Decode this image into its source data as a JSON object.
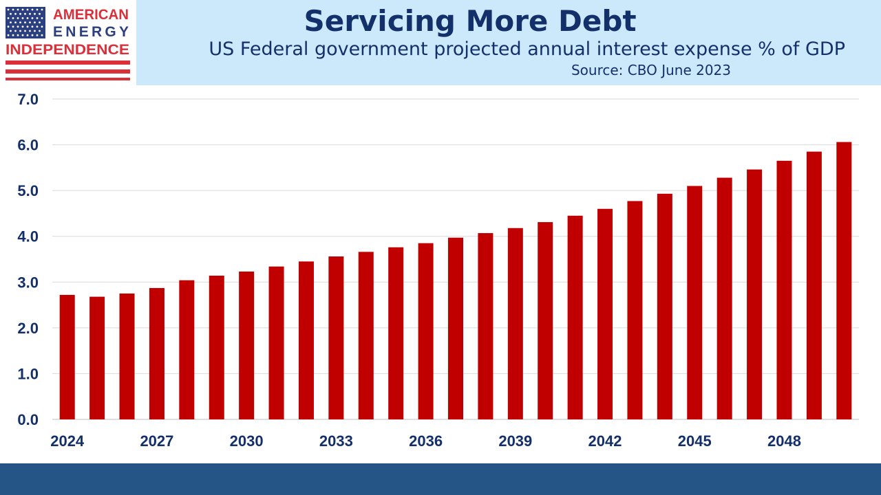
{
  "logo": {
    "line1": "AMERICAN",
    "line2": "ENERGY",
    "line3": "INDEPENDENCE",
    "colors": {
      "red": "#d9303a",
      "blue": "#2c3f7f"
    }
  },
  "chart_data": {
    "type": "bar",
    "title": "Servicing More Debt",
    "subtitle": "US Federal government projected annual interest expense % of GDP",
    "source": "Source: CBO June 2023",
    "xlabel": "",
    "ylabel": "",
    "categories": [
      "2024",
      "2025",
      "2026",
      "2027",
      "2028",
      "2029",
      "2030",
      "2031",
      "2032",
      "2033",
      "2034",
      "2035",
      "2036",
      "2037",
      "2038",
      "2039",
      "2040",
      "2041",
      "2042",
      "2043",
      "2044",
      "2045",
      "2046",
      "2047",
      "2048",
      "2049",
      "2050"
    ],
    "x_tick_labels": [
      "2024",
      "",
      "",
      "2027",
      "",
      "",
      "2030",
      "",
      "",
      "2033",
      "",
      "",
      "2036",
      "",
      "",
      "2039",
      "",
      "",
      "2042",
      "",
      "",
      "2045",
      "",
      "",
      "2048",
      "",
      ""
    ],
    "values": [
      2.72,
      2.68,
      2.75,
      2.87,
      3.04,
      3.14,
      3.23,
      3.34,
      3.45,
      3.56,
      3.66,
      3.76,
      3.85,
      3.97,
      4.07,
      4.18,
      4.31,
      4.45,
      4.6,
      4.77,
      4.93,
      5.1,
      5.28,
      5.46,
      5.65,
      5.85,
      6.06
    ],
    "y_ticks": [
      "0.0",
      "1.0",
      "2.0",
      "3.0",
      "4.0",
      "5.0",
      "6.0",
      "7.0"
    ],
    "ylim": [
      0,
      7
    ],
    "grid": true,
    "bar_color": "#c00000"
  }
}
